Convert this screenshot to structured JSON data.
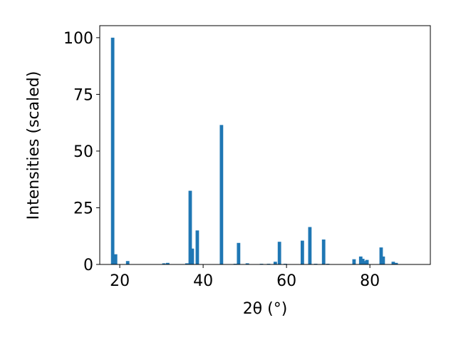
{
  "chart_data": {
    "type": "bar",
    "x_label": "2θ (°)",
    "y_label": "Intensities (scaled)",
    "x": [
      18.3,
      19.0,
      21.9,
      30.6,
      31.5,
      36.1,
      36.9,
      37.4,
      38.6,
      44.4,
      47.7,
      48.5,
      50.6,
      54.0,
      55.7,
      57.3,
      58.3,
      59.7,
      63.8,
      65.6,
      67.0,
      68.9,
      69.9,
      76.2,
      77.8,
      78.3,
      78.8,
      79.3,
      82.7,
      83.2,
      85.6,
      86.3
    ],
    "values": [
      100,
      4.5,
      1.5,
      0.5,
      0.7,
      0.5,
      32.5,
      7,
      15,
      61.5,
      0.3,
      9.5,
      0.5,
      0.3,
      0.3,
      1.2,
      10,
      0.3,
      10.5,
      16.5,
      0.3,
      11,
      0.3,
      2.3,
      3.5,
      2.5,
      1.5,
      2,
      7.5,
      3.5,
      1.2,
      0.7
    ],
    "color": "#1f77b4",
    "xlim": [
      15.2,
      94.5
    ],
    "xticks": [
      20,
      40,
      60,
      80
    ],
    "ylim": [
      0,
      105.3
    ],
    "yticks": [
      0,
      25,
      50,
      75,
      100
    ],
    "grid": false
  }
}
